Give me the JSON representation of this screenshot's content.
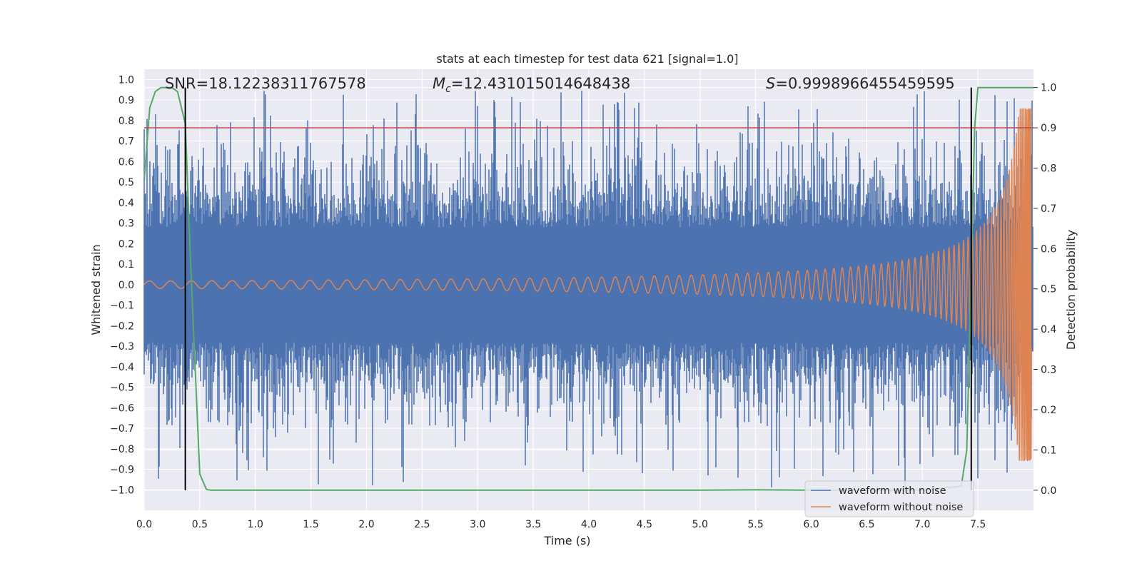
{
  "chart_data": {
    "type": "line",
    "title": "stats at each timestep for test data 621 [signal=1.0]",
    "xlabel": "Time (s)",
    "ylabel": "Whitened strain",
    "y2label": "Detection probability",
    "xlim": [
      0.0,
      8.0
    ],
    "ylim": [
      -1.1,
      1.05
    ],
    "y2lim": [
      -0.05,
      1.0455
    ],
    "xticks": [
      "0.0",
      "0.5",
      "1.0",
      "1.5",
      "2.0",
      "2.5",
      "3.0",
      "3.5",
      "4.0",
      "4.5",
      "5.0",
      "5.5",
      "6.0",
      "6.5",
      "7.0",
      "7.5"
    ],
    "yticks": [
      "1.0",
      "0.9",
      "0.8",
      "0.7",
      "0.6",
      "0.5",
      "0.4",
      "0.3",
      "0.2",
      "0.1",
      "0.0",
      "−0.1",
      "−0.2",
      "−0.3",
      "−0.4",
      "−0.5",
      "−0.6",
      "−0.7",
      "−0.8",
      "−0.9",
      "−1.0"
    ],
    "y2ticks": [
      "1.0",
      "0.9",
      "0.8",
      "0.7",
      "0.6",
      "0.5",
      "0.4",
      "0.3",
      "0.2",
      "0.1",
      "0.0"
    ],
    "grid": true,
    "legend_position": "bottom-right",
    "annotations": {
      "snr": "SNR=18.12238311767578",
      "mc_symbol": "M",
      "mc_sub": "c",
      "mc_value": "=12.431015014648438",
      "s_symbol": "S",
      "s_value": "=0.9998966455459595"
    },
    "threshold_y2": 0.9,
    "vertical_lines_x": [
      0.37,
      7.44
    ],
    "colors": {
      "noisy": "#4c72b0",
      "clean": "#dd8452",
      "probability": "#55a868",
      "threshold": "#c44e52",
      "vlines": "#000000",
      "background": "#eaeaf2",
      "grid": "#ffffff"
    },
    "series": [
      {
        "name": "waveform with noise",
        "description_values": "dense noise, amplitude ~0.3-0.9",
        "range": [
          -0.99,
          0.95
        ]
      },
      {
        "name": "waveform without noise",
        "description_values": "chirp, amplitude growing from ~0.02 to ~0.85 near 8.0 s"
      },
      {
        "name": "detection probability",
        "axis": "y2",
        "x": [
          0.0,
          0.05,
          0.1,
          0.15,
          0.2,
          0.25,
          0.3,
          0.37,
          0.42,
          0.5,
          0.56,
          0.6,
          1.0,
          2.0,
          3.0,
          4.0,
          5.0,
          5.5,
          6.0,
          7.0,
          7.35,
          7.4,
          7.44,
          7.47,
          7.5,
          7.6,
          8.0
        ],
        "y": [
          0.77,
          0.95,
          0.99,
          1.0,
          1.0,
          1.0,
          0.99,
          0.91,
          0.55,
          0.04,
          0.002,
          0.0,
          0.0,
          0.0,
          0.0,
          0.0,
          0.0,
          0.001,
          0.0,
          0.0,
          0.01,
          0.1,
          0.55,
          0.9,
          1.0,
          1.0,
          1.0
        ]
      }
    ]
  }
}
